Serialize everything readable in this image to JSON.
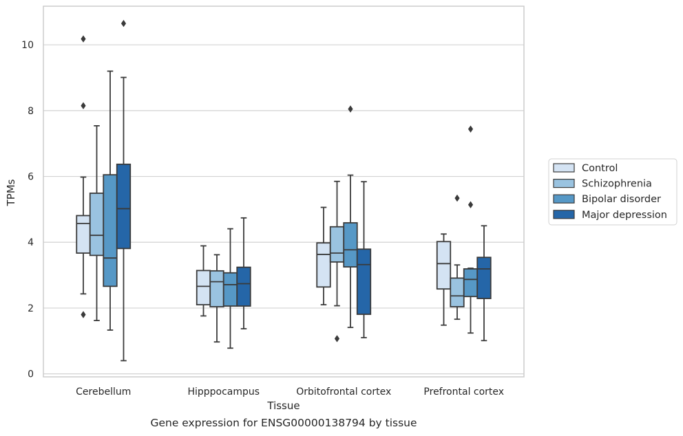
{
  "caption": "Gene expression for ENSG00000138794 by tissue",
  "chart_data": {
    "type": "box",
    "xlabel": "Tissue",
    "ylabel": "TPMs",
    "ylim": [
      -0.1,
      11.2
    ],
    "yticks": [
      0,
      2,
      4,
      6,
      8,
      10
    ],
    "grid": "horizontal",
    "legend_position": "right",
    "categories": [
      "Cerebellum",
      "Hipppocampus",
      "Orbitofrontal cortex",
      "Prefrontal cortex"
    ],
    "series": [
      {
        "name": "Control",
        "color": "#d4e3f3",
        "boxes": [
          {
            "whisker_low": 2.43,
            "q1": 3.67,
            "median": 4.57,
            "q3": 4.81,
            "whisker_high": 5.98,
            "outliers": [
              10.18,
              8.15,
              1.8
            ]
          },
          {
            "whisker_low": 1.76,
            "q1": 2.1,
            "median": 2.66,
            "q3": 3.14,
            "whisker_high": 3.89,
            "outliers": []
          },
          {
            "whisker_low": 2.1,
            "q1": 2.64,
            "median": 3.63,
            "q3": 3.98,
            "whisker_high": 5.06,
            "outliers": []
          },
          {
            "whisker_low": 1.48,
            "q1": 2.58,
            "median": 3.35,
            "q3": 4.02,
            "whisker_high": 4.25,
            "outliers": []
          }
        ]
      },
      {
        "name": "Schizophrenia",
        "color": "#9ac3e0",
        "boxes": [
          {
            "whisker_low": 1.62,
            "q1": 3.6,
            "median": 4.21,
            "q3": 5.49,
            "whisker_high": 7.54,
            "outliers": []
          },
          {
            "whisker_low": 0.97,
            "q1": 2.04,
            "median": 2.8,
            "q3": 3.13,
            "whisker_high": 3.62,
            "outliers": []
          },
          {
            "whisker_low": 2.07,
            "q1": 3.4,
            "median": 3.67,
            "q3": 4.47,
            "whisker_high": 5.85,
            "outliers": [
              1.07
            ]
          },
          {
            "whisker_low": 1.66,
            "q1": 2.04,
            "median": 2.37,
            "q3": 2.91,
            "whisker_high": 3.31,
            "outliers": [
              5.34
            ]
          }
        ]
      },
      {
        "name": "Bipolar disorder",
        "color": "#5698c6",
        "boxes": [
          {
            "whisker_low": 1.33,
            "q1": 2.66,
            "median": 3.52,
            "q3": 6.05,
            "whisker_high": 9.2,
            "outliers": []
          },
          {
            "whisker_low": 0.78,
            "q1": 2.06,
            "median": 2.71,
            "q3": 3.07,
            "whisker_high": 4.41,
            "outliers": []
          },
          {
            "whisker_low": 1.41,
            "q1": 3.25,
            "median": 3.77,
            "q3": 4.59,
            "whisker_high": 6.04,
            "outliers": [
              8.05
            ]
          },
          {
            "whisker_low": 1.24,
            "q1": 2.35,
            "median": 2.87,
            "q3": 3.19,
            "whisker_high": 3.21,
            "outliers": [
              7.44,
              5.14
            ]
          }
        ]
      },
      {
        "name": "Major depression",
        "color": "#2566a8",
        "boxes": [
          {
            "whisker_low": 0.4,
            "q1": 3.81,
            "median": 5.02,
            "q3": 6.37,
            "whisker_high": 9.01,
            "outliers": [
              10.65
            ]
          },
          {
            "whisker_low": 1.37,
            "q1": 2.06,
            "median": 2.74,
            "q3": 3.24,
            "whisker_high": 4.74,
            "outliers": []
          },
          {
            "whisker_low": 1.1,
            "q1": 1.81,
            "median": 3.32,
            "q3": 3.79,
            "whisker_high": 5.84,
            "outliers": []
          },
          {
            "whisker_low": 1.01,
            "q1": 2.29,
            "median": 3.19,
            "q3": 3.54,
            "whisker_high": 4.5,
            "outliers": []
          }
        ]
      }
    ]
  }
}
